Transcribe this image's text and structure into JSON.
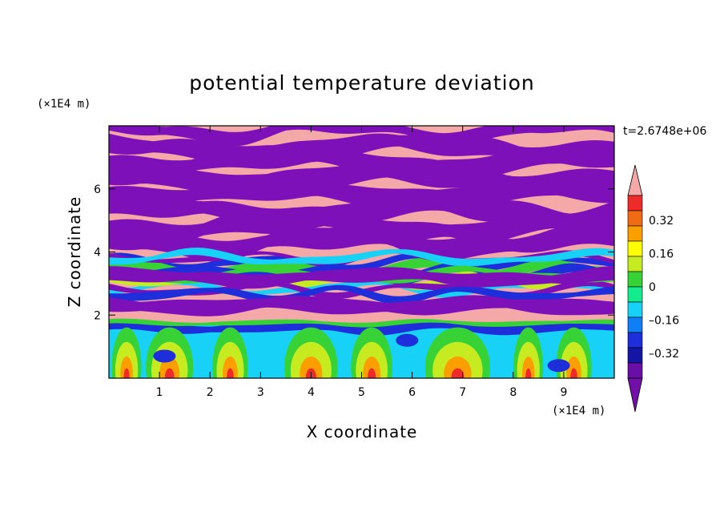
{
  "chart_data": {
    "type": "heatmap",
    "title": "potential temperature deviation",
    "xlabel": "X coordinate",
    "ylabel": "Z coordinate",
    "x_unit": "(×1E4 m)",
    "y_unit": "(×1E4 m)",
    "time_label": "t=2.6748e+06",
    "xlim": [
      0,
      10
    ],
    "ylim": [
      0,
      8
    ],
    "x_ticks": [
      "1",
      "2",
      "3",
      "4",
      "5",
      "6",
      "7",
      "8",
      "9"
    ],
    "y_ticks": [
      "2",
      "4",
      "6"
    ],
    "colorbar": {
      "levels": [
        -0.48,
        -0.4,
        -0.32,
        -0.24,
        -0.16,
        -0.08,
        0,
        0.08,
        0.16,
        0.24,
        0.32,
        0.4,
        0.48
      ],
      "tick_labels": [
        "0.32",
        "0.16",
        "0",
        "–0.16",
        "–0.32"
      ],
      "tick_values": [
        0.32,
        0.16,
        0,
        -0.16,
        -0.32
      ],
      "colors_high_to_low": [
        "#f4a8a8",
        "#ef2a2a",
        "#f06b14",
        "#fb9e00",
        "#ffff00",
        "#c7eb21",
        "#36d236",
        "#14eb8c",
        "#17d2f6",
        "#0f7ff5",
        "#1d2eda",
        "#1414a5",
        "#6a0fa6",
        "#8a2be2"
      ],
      "over_color": "#f4a8a8",
      "under_color": "#7010a8"
    },
    "layers": [
      {
        "z_range": [
          6.6,
          8.0
        ],
        "pattern": "alternating bands",
        "colors": [
          "#f4a8a8",
          "#7d10b8"
        ]
      },
      {
        "z_range": [
          4.0,
          6.6
        ],
        "pattern": "alternating bands",
        "colors": [
          "#f4a8a8",
          "#7d10b8"
        ]
      },
      {
        "z_range": [
          1.8,
          4.0
        ],
        "pattern": "mixed turbulent bands",
        "colors": [
          "#f4a8a8",
          "#7d10b8",
          "#1d2eda",
          "#17d2f6",
          "#36d236"
        ]
      },
      {
        "z_range": [
          0.0,
          1.8
        ],
        "pattern": "convective boundary layer",
        "colors": [
          "#17d2f6",
          "#36d236",
          "#c7eb21",
          "#fb9e00",
          "#ef2a2a"
        ]
      }
    ]
  }
}
